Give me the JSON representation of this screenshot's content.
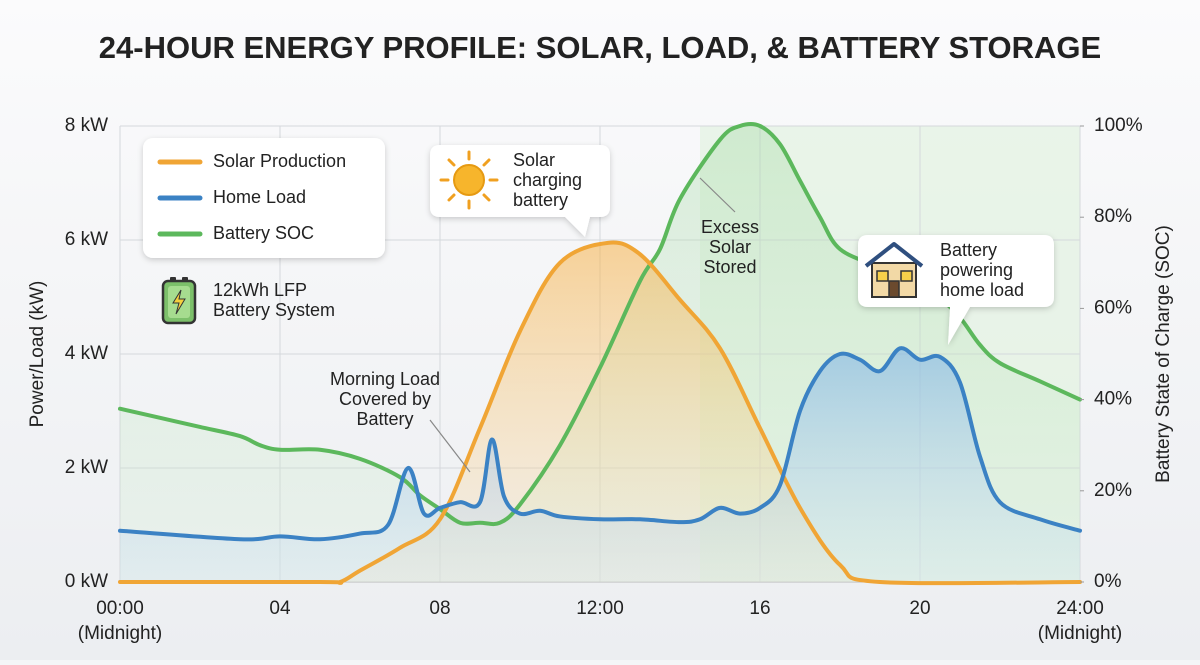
{
  "chart_data": {
    "type": "line",
    "title": "24-HOUR ENERGY PROFILE: SOLAR, LOAD, & BATTERY STORAGE",
    "y_label": "Power/Load (kW)",
    "y2_label": "Battery State of Charge (SOC)",
    "xlim": [
      0,
      24
    ],
    "xticks": [
      {
        "value": 0,
        "label": [
          "00:00",
          "(Midnight)"
        ]
      },
      {
        "value": 4,
        "label": [
          "04"
        ]
      },
      {
        "value": 8,
        "label": [
          "08"
        ]
      },
      {
        "value": 12,
        "label": [
          "12:00"
        ]
      },
      {
        "value": 16,
        "label": [
          "16"
        ]
      },
      {
        "value": 20,
        "label": [
          "20"
        ]
      },
      {
        "value": 24,
        "label": [
          "24:00",
          "(Midnight)"
        ]
      }
    ],
    "ylim": [
      0,
      8
    ],
    "yticks": [
      {
        "value": 0,
        "label": "0 kW"
      },
      {
        "value": 2,
        "label": "2 kW"
      },
      {
        "value": 4,
        "label": "4 kW"
      },
      {
        "value": 6,
        "label": "6 kW"
      },
      {
        "value": 8,
        "label": "8 kW"
      }
    ],
    "y2lim": [
      0,
      100
    ],
    "y2ticks": [
      {
        "value": 0,
        "label": "0%"
      },
      {
        "value": 20,
        "label": "20%"
      },
      {
        "value": 40,
        "label": "40%"
      },
      {
        "value": 60,
        "label": "60%"
      },
      {
        "value": 80,
        "label": "80%"
      },
      {
        "value": 100,
        "label": "100%"
      }
    ],
    "grid": true,
    "legend_position": "upper left",
    "legend_note": [
      "12kWh LFP",
      "Battery System"
    ],
    "series": [
      {
        "name": "Solar Production",
        "color": "#f0a535",
        "axis": "y",
        "x": [
          0,
          5,
          5.5,
          6,
          7,
          8,
          9,
          10,
          11,
          12.2,
          13,
          14,
          15,
          16,
          17,
          18,
          19,
          24
        ],
        "values": [
          0,
          0,
          0,
          0.2,
          0.6,
          1.1,
          2.7,
          4.4,
          5.6,
          5.95,
          5.75,
          4.95,
          4.1,
          2.7,
          1.3,
          0.3,
          0,
          0
        ]
      },
      {
        "name": "Home Load",
        "color": "#3b82c4",
        "axis": "y",
        "x": [
          0,
          3,
          4,
          5,
          6,
          6.7,
          7.2,
          7.6,
          8,
          8.5,
          9,
          9.3,
          9.6,
          10,
          10.5,
          11,
          12,
          13,
          14,
          14.5,
          15,
          15.5,
          16,
          16.5,
          17,
          17.5,
          18,
          18.5,
          19,
          19.5,
          20,
          20.5,
          21,
          21.5,
          22,
          23,
          24
        ],
        "values": [
          0.9,
          0.75,
          0.8,
          0.75,
          0.85,
          1.0,
          2.0,
          1.2,
          1.3,
          1.4,
          1.4,
          2.5,
          1.5,
          1.2,
          1.25,
          1.15,
          1.1,
          1.1,
          1.05,
          1.1,
          1.3,
          1.2,
          1.3,
          1.7,
          3.0,
          3.7,
          4.0,
          3.9,
          3.7,
          4.1,
          3.9,
          3.95,
          3.5,
          2.2,
          1.4,
          1.1,
          0.9
        ]
      },
      {
        "name": "Battery SOC",
        "color": "#5cb85c",
        "axis": "y2",
        "x": [
          0,
          1,
          2,
          3,
          3.5,
          4,
          5,
          6,
          7,
          7.5,
          8,
          8.5,
          9,
          9.5,
          10,
          11,
          12,
          13,
          13.5,
          14,
          15,
          15.5,
          16,
          16.5,
          17,
          17.5,
          18,
          19,
          19.5,
          20.5,
          21,
          21.5,
          22,
          23,
          24
        ],
        "values": [
          38,
          36,
          34,
          32,
          30,
          29,
          29,
          27,
          23,
          19,
          16,
          13,
          13,
          13,
          17,
          30,
          47,
          66,
          73,
          84,
          97,
          100,
          100,
          96,
          88,
          80,
          73,
          69,
          67,
          62,
          58,
          52,
          48,
          44,
          40
        ]
      }
    ],
    "annotations": [
      {
        "lines": [
          "Solar",
          "charging",
          "battery"
        ]
      },
      {
        "lines": [
          "Excess",
          "Solar",
          "Stored"
        ]
      },
      {
        "lines": [
          "Morning Load",
          "Covered by",
          "Battery"
        ]
      },
      {
        "lines": [
          "Battery",
          "powering",
          "home load"
        ]
      }
    ]
  }
}
